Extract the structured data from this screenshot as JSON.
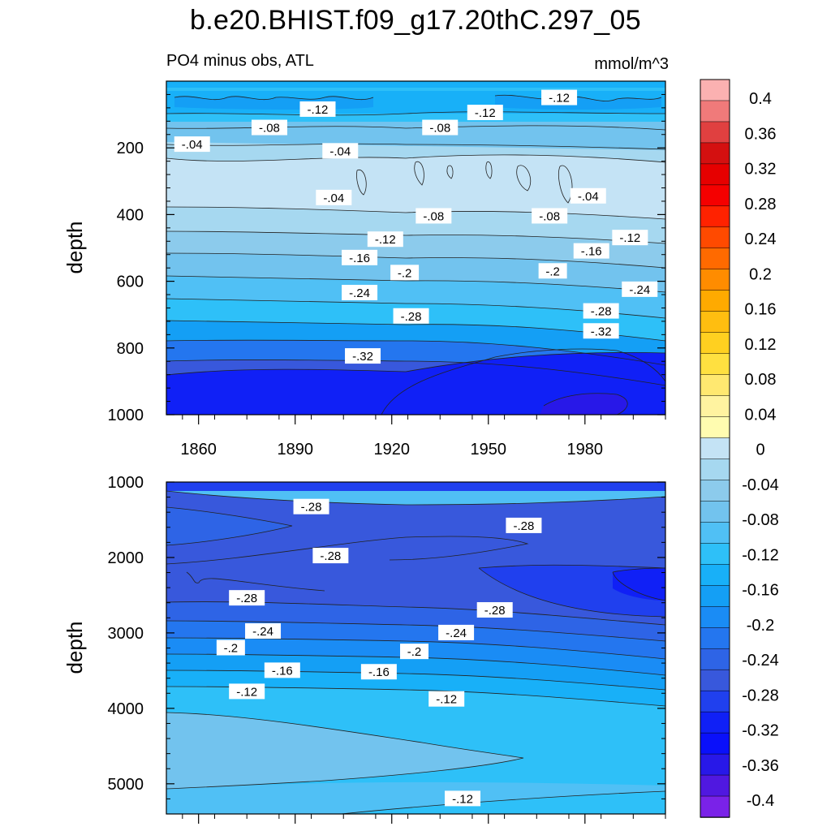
{
  "title": "b.e20.BHIST.f09_g17.20thC.297_05",
  "left_string": "PO4 minus obs, ATL",
  "right_string": "mmol/m^3",
  "colorbar": {
    "levels": [
      0.4,
      0.36,
      0.32,
      0.28,
      0.24,
      0.2,
      0.16,
      0.12,
      0.08,
      0.04,
      0,
      -0.04,
      -0.08,
      -0.12,
      -0.16,
      -0.2,
      -0.24,
      -0.28,
      -0.32,
      -0.36,
      -0.4
    ],
    "labels": [
      "0.4",
      "0.36",
      "0.32",
      "0.28",
      "0.24",
      "0.2",
      "0.16",
      "0.12",
      "0.08",
      "0.04",
      "0",
      "-0.04",
      "-0.08",
      "-0.12",
      "-0.16",
      "-0.2",
      "-0.24",
      "-0.28",
      "-0.32",
      "-0.36",
      "-0.4"
    ],
    "colors": [
      "#fbb1b1",
      "#f07a7a",
      "#e04040",
      "#d41010",
      "#e60000",
      "#f50000",
      "#ff2200",
      "#ff4a00",
      "#ff6a00",
      "#ff8c00",
      "#ffaa00",
      "#ffbe10",
      "#ffd020",
      "#ffe040",
      "#ffe870",
      "#fff3a0",
      "#fffcb0",
      "#c4e3f5",
      "#a6d8f0",
      "#8ccbec",
      "#72c3ee",
      "#50c0f5",
      "#2ec0f8",
      "#18b0f8",
      "#149ff5",
      "#1a8cf5",
      "#2476ef",
      "#2e64e6",
      "#3858dc",
      "#2040ee",
      "#1020f6",
      "#0a10fa",
      "#2818e8",
      "#5018e0",
      "#7a22e8"
    ]
  },
  "chart_data": [
    {
      "type": "heatmap",
      "subtype": "contour",
      "title": "PO4 minus obs, ATL",
      "units": "mmol/m^3",
      "ylabel": "depth",
      "xlim": [
        1850,
        2005
      ],
      "ylim": [
        1000,
        0
      ],
      "x_ticks": [
        1860,
        1890,
        1920,
        1950,
        1980
      ],
      "y_ticks": [
        200,
        400,
        600,
        800,
        1000
      ],
      "contour_labels": [
        {
          "x": 1897,
          "y": 85,
          "text": "-.12"
        },
        {
          "x": 1882,
          "y": 140,
          "text": "-.08"
        },
        {
          "x": 1858,
          "y": 190,
          "text": "-.04"
        },
        {
          "x": 1904,
          "y": 210,
          "text": "-.04"
        },
        {
          "x": 1902,
          "y": 350,
          "text": "-.04"
        },
        {
          "x": 1935,
          "y": 140,
          "text": "-.08"
        },
        {
          "x": 1949,
          "y": 95,
          "text": "-.12"
        },
        {
          "x": 1972,
          "y": 50,
          "text": "-.12"
        },
        {
          "x": 1981,
          "y": 345,
          "text": "-.04"
        },
        {
          "x": 1933,
          "y": 405,
          "text": "-.08"
        },
        {
          "x": 1969,
          "y": 405,
          "text": "-.08"
        },
        {
          "x": 1918,
          "y": 475,
          "text": "-.12"
        },
        {
          "x": 1910,
          "y": 530,
          "text": "-.16"
        },
        {
          "x": 1924,
          "y": 575,
          "text": "-.2"
        },
        {
          "x": 1970,
          "y": 570,
          "text": "-.2"
        },
        {
          "x": 1982,
          "y": 510,
          "text": "-.16"
        },
        {
          "x": 1994,
          "y": 470,
          "text": "-.12"
        },
        {
          "x": 1910,
          "y": 635,
          "text": "-.24"
        },
        {
          "x": 1997,
          "y": 625,
          "text": "-.24"
        },
        {
          "x": 1926,
          "y": 705,
          "text": "-.28"
        },
        {
          "x": 1985,
          "y": 690,
          "text": "-.28"
        },
        {
          "x": 1985,
          "y": 750,
          "text": "-.32"
        },
        {
          "x": 1911,
          "y": 825,
          "text": "-.32"
        }
      ]
    },
    {
      "type": "heatmap",
      "subtype": "contour",
      "ylabel": "depth",
      "xlim": [
        1850,
        2005
      ],
      "ylim": [
        5400,
        1000
      ],
      "y_ticks": [
        1000,
        2000,
        3000,
        4000,
        5000
      ],
      "contour_labels": [
        {
          "x": 1895,
          "y": 1330,
          "text": "-.28"
        },
        {
          "x": 1961,
          "y": 1580,
          "text": "-.28"
        },
        {
          "x": 1901,
          "y": 1980,
          "text": "-.28"
        },
        {
          "x": 1875,
          "y": 2540,
          "text": "-.28"
        },
        {
          "x": 1952,
          "y": 2700,
          "text": "-.28"
        },
        {
          "x": 1880,
          "y": 2980,
          "text": "-.24"
        },
        {
          "x": 1940,
          "y": 3000,
          "text": "-.24"
        },
        {
          "x": 1870,
          "y": 3200,
          "text": "-.2"
        },
        {
          "x": 1927,
          "y": 3250,
          "text": "-.2"
        },
        {
          "x": 1886,
          "y": 3500,
          "text": "-.16"
        },
        {
          "x": 1916,
          "y": 3520,
          "text": "-.16"
        },
        {
          "x": 1875,
          "y": 3780,
          "text": "-.12"
        },
        {
          "x": 1937,
          "y": 3880,
          "text": "-.12"
        },
        {
          "x": 1942,
          "y": 5200,
          "text": "-.12"
        }
      ]
    }
  ]
}
